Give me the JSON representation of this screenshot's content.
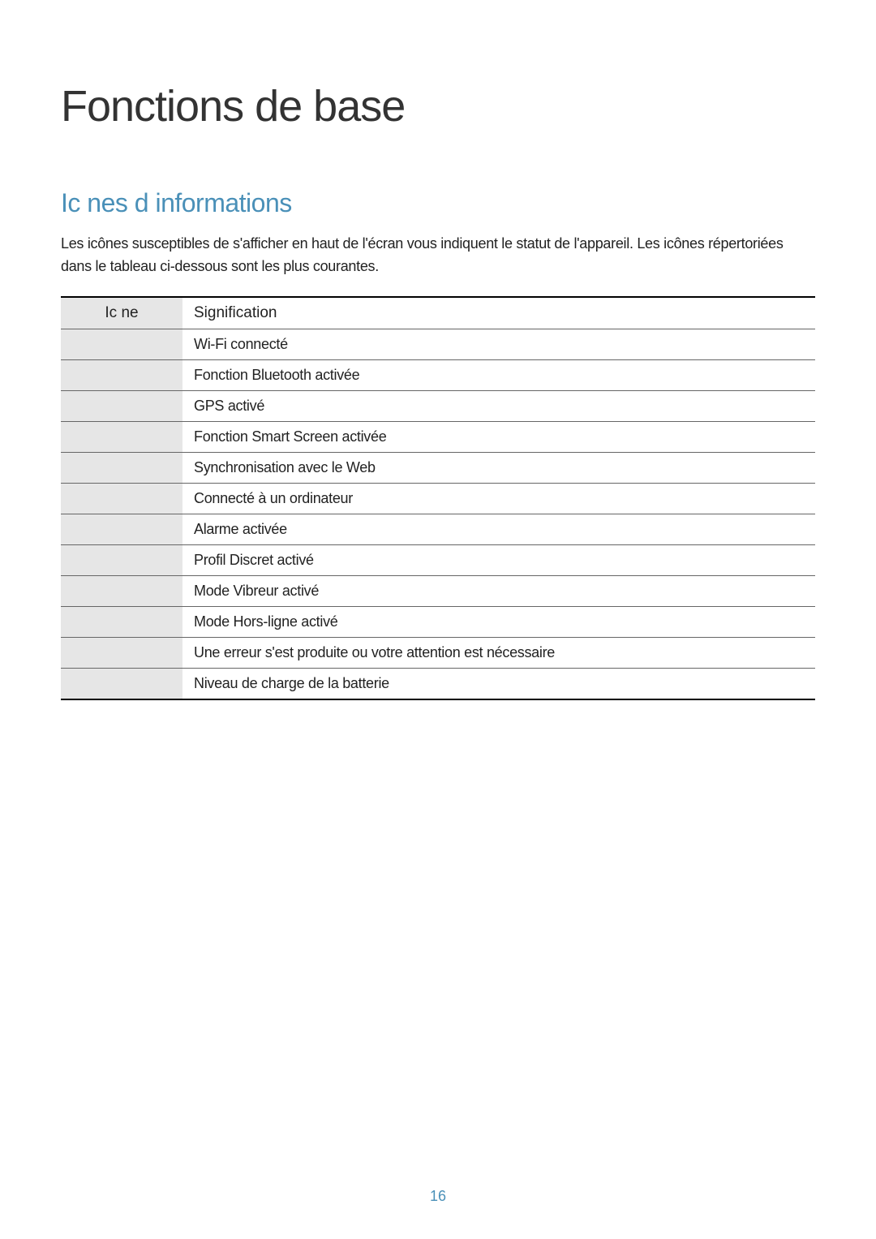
{
  "page": {
    "main_title": "Fonctions de base",
    "section_title": "Ic nes d informations",
    "section_description": "Les icônes susceptibles de s'afficher en haut de l'écran vous indiquent le statut de l'appareil. Les icônes répertoriées dans le tableau ci-dessous sont les plus courantes.",
    "page_number": "16"
  },
  "table": {
    "headers": {
      "icon": "Ic ne",
      "meaning": "Signification"
    },
    "rows": [
      {
        "icon": "",
        "meaning": "Wi-Fi connecté"
      },
      {
        "icon": "",
        "meaning": "Fonction Bluetooth activée"
      },
      {
        "icon": "",
        "meaning": "GPS activé"
      },
      {
        "icon": "",
        "meaning": "Fonction Smart Screen activée"
      },
      {
        "icon": "",
        "meaning": "Synchronisation avec le Web"
      },
      {
        "icon": "",
        "meaning": "Connecté à un ordinateur"
      },
      {
        "icon": "",
        "meaning": "Alarme activée"
      },
      {
        "icon": "",
        "meaning": "Profil Discret activé"
      },
      {
        "icon": "",
        "meaning": "Mode Vibreur activé"
      },
      {
        "icon": "",
        "meaning": "Mode Hors-ligne activé"
      },
      {
        "icon": "",
        "meaning": "Une erreur s'est produite ou votre attention est nécessaire"
      },
      {
        "icon": "",
        "meaning": "Niveau de charge de la batterie"
      }
    ]
  },
  "styling": {
    "background_color": "#ffffff",
    "main_title_color": "#333333",
    "main_title_fontsize": 54,
    "section_title_color": "#4a90b8",
    "section_title_fontsize": 32,
    "body_text_color": "#222222",
    "body_text_fontsize": 18,
    "table_header_bg": "#e6e6e6",
    "table_icon_col_bg": "#e6e6e6",
    "table_border_top": "#000000",
    "table_border_inner": "#666666",
    "icon_col_width": 150,
    "page_number_color": "#4a90b8"
  }
}
